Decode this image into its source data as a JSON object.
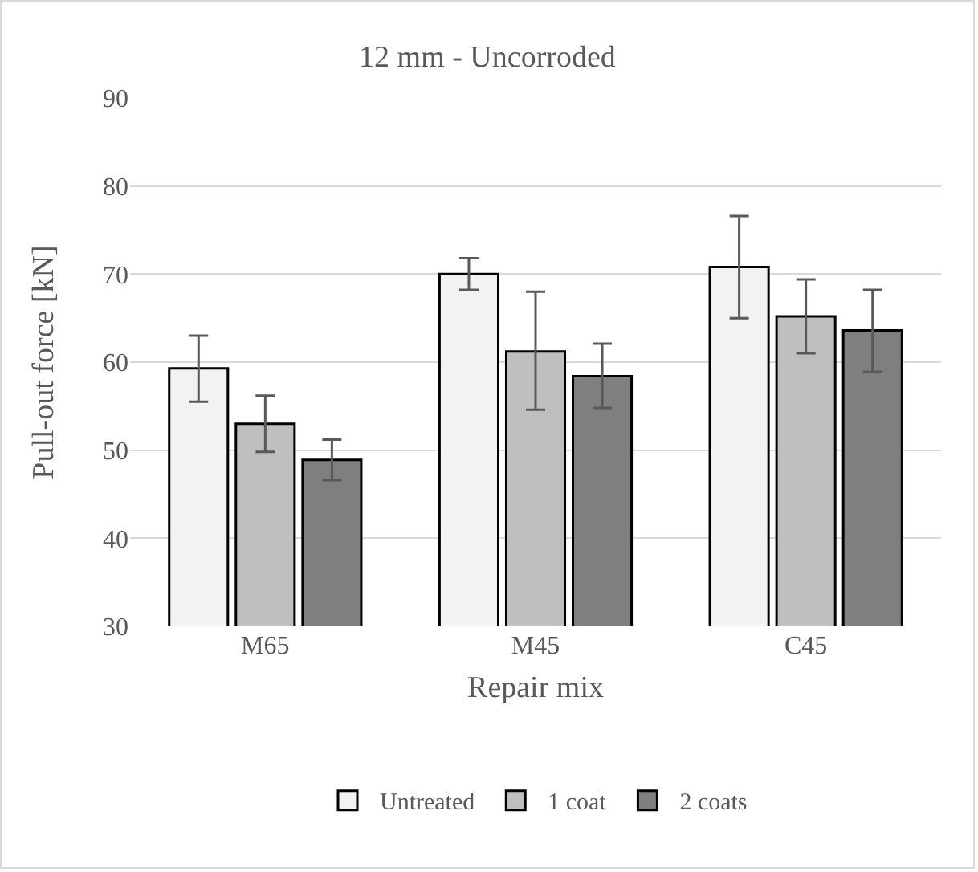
{
  "chart_data": {
    "type": "bar",
    "title": "12 mm - Uncorroded",
    "xlabel": "Repair mix",
    "ylabel": "Pull-out force [kN]",
    "categories": [
      "M65",
      "M45",
      "C45"
    ],
    "series": [
      {
        "name": "Untreated",
        "color": "#f2f2f2",
        "values": [
          59.3,
          70,
          70.8
        ],
        "errors": [
          [
            55.5,
            63
          ],
          [
            68.2,
            71.8
          ],
          [
            65,
            76.6
          ]
        ]
      },
      {
        "name": "1 coat",
        "color": "#bfbfbf",
        "values": [
          53,
          61.2,
          65.2
        ],
        "errors": [
          [
            49.8,
            56.2
          ],
          [
            54.6,
            68
          ],
          [
            61,
            69.4
          ]
        ]
      },
      {
        "name": "2 coats",
        "color": "#7f7f7f",
        "values": [
          48.9,
          58.4,
          63.6
        ],
        "errors": [
          [
            46.6,
            51.2
          ],
          [
            54.8,
            62.1
          ],
          [
            58.9,
            68.2
          ]
        ]
      }
    ],
    "ylim": [
      30,
      90
    ],
    "yticks": [
      30,
      40,
      50,
      60,
      70,
      80,
      90
    ],
    "grid": "y",
    "legend": "bottom"
  }
}
